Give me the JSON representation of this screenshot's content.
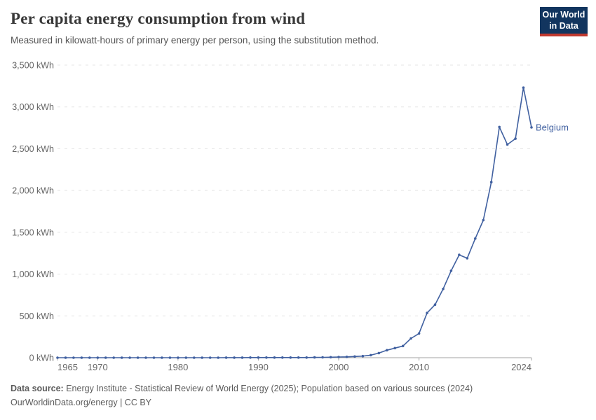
{
  "header": {
    "title": "Per capita energy consumption from wind",
    "subtitle": "Measured in kilowatt-hours of primary energy per person, using the substitution method.",
    "logo": {
      "line1": "Our World",
      "line2": "in Data"
    }
  },
  "footer": {
    "source_label": "Data source:",
    "source_text": " Energy Institute - Statistical Review of World Energy (2025); Population based on various sources (2024)",
    "license": "OurWorldinData.org/energy | CC BY"
  },
  "colors": {
    "series_line": "#4060a0",
    "grid_line": "#e5e5e5",
    "axis_line": "#a3a3a3",
    "tick_label": "#666666",
    "title_text": "#383838",
    "subtitle_text": "#555555",
    "footer_text": "#5b5b5b",
    "logo_background": "#12355f",
    "logo_accent": "#c0392f"
  },
  "chart_data": {
    "type": "line",
    "title": "Per capita energy consumption from wind",
    "xlabel": "",
    "ylabel": "",
    "unit_suffix": "kWh",
    "grid": true,
    "legend_position": "end-of-line",
    "xlim": [
      1965,
      2024
    ],
    "ylim": [
      0,
      3500
    ],
    "y_ticks": [
      0,
      500,
      1000,
      1500,
      2000,
      2500,
      3000,
      3500
    ],
    "x_ticks": [
      1965,
      1970,
      1980,
      1990,
      2000,
      2010,
      2024
    ],
    "x": [
      1965,
      1966,
      1967,
      1968,
      1969,
      1970,
      1971,
      1972,
      1973,
      1974,
      1975,
      1976,
      1977,
      1978,
      1979,
      1980,
      1981,
      1982,
      1983,
      1984,
      1985,
      1986,
      1987,
      1988,
      1989,
      1990,
      1991,
      1992,
      1993,
      1994,
      1995,
      1996,
      1997,
      1998,
      1999,
      2000,
      2001,
      2002,
      2003,
      2004,
      2005,
      2006,
      2007,
      2008,
      2009,
      2010,
      2011,
      2012,
      2013,
      2014,
      2015,
      2016,
      2017,
      2018,
      2019,
      2020,
      2021,
      2022,
      2023,
      2024
    ],
    "series": [
      {
        "name": "Belgium",
        "values": [
          0,
          0,
          0,
          0,
          0,
          0,
          0,
          0,
          0,
          0,
          0,
          0,
          0,
          0,
          0,
          0,
          0,
          0,
          0,
          0,
          0,
          1,
          1,
          1,
          2,
          2,
          2,
          2,
          2,
          2,
          2,
          2,
          3,
          4,
          6,
          8,
          10,
          14,
          19,
          30,
          55,
          90,
          115,
          140,
          230,
          290,
          535,
          635,
          822,
          1040,
          1230,
          1190,
          1425,
          1645,
          2100,
          2760,
          2550,
          2620,
          3230,
          2755
        ]
      }
    ]
  }
}
